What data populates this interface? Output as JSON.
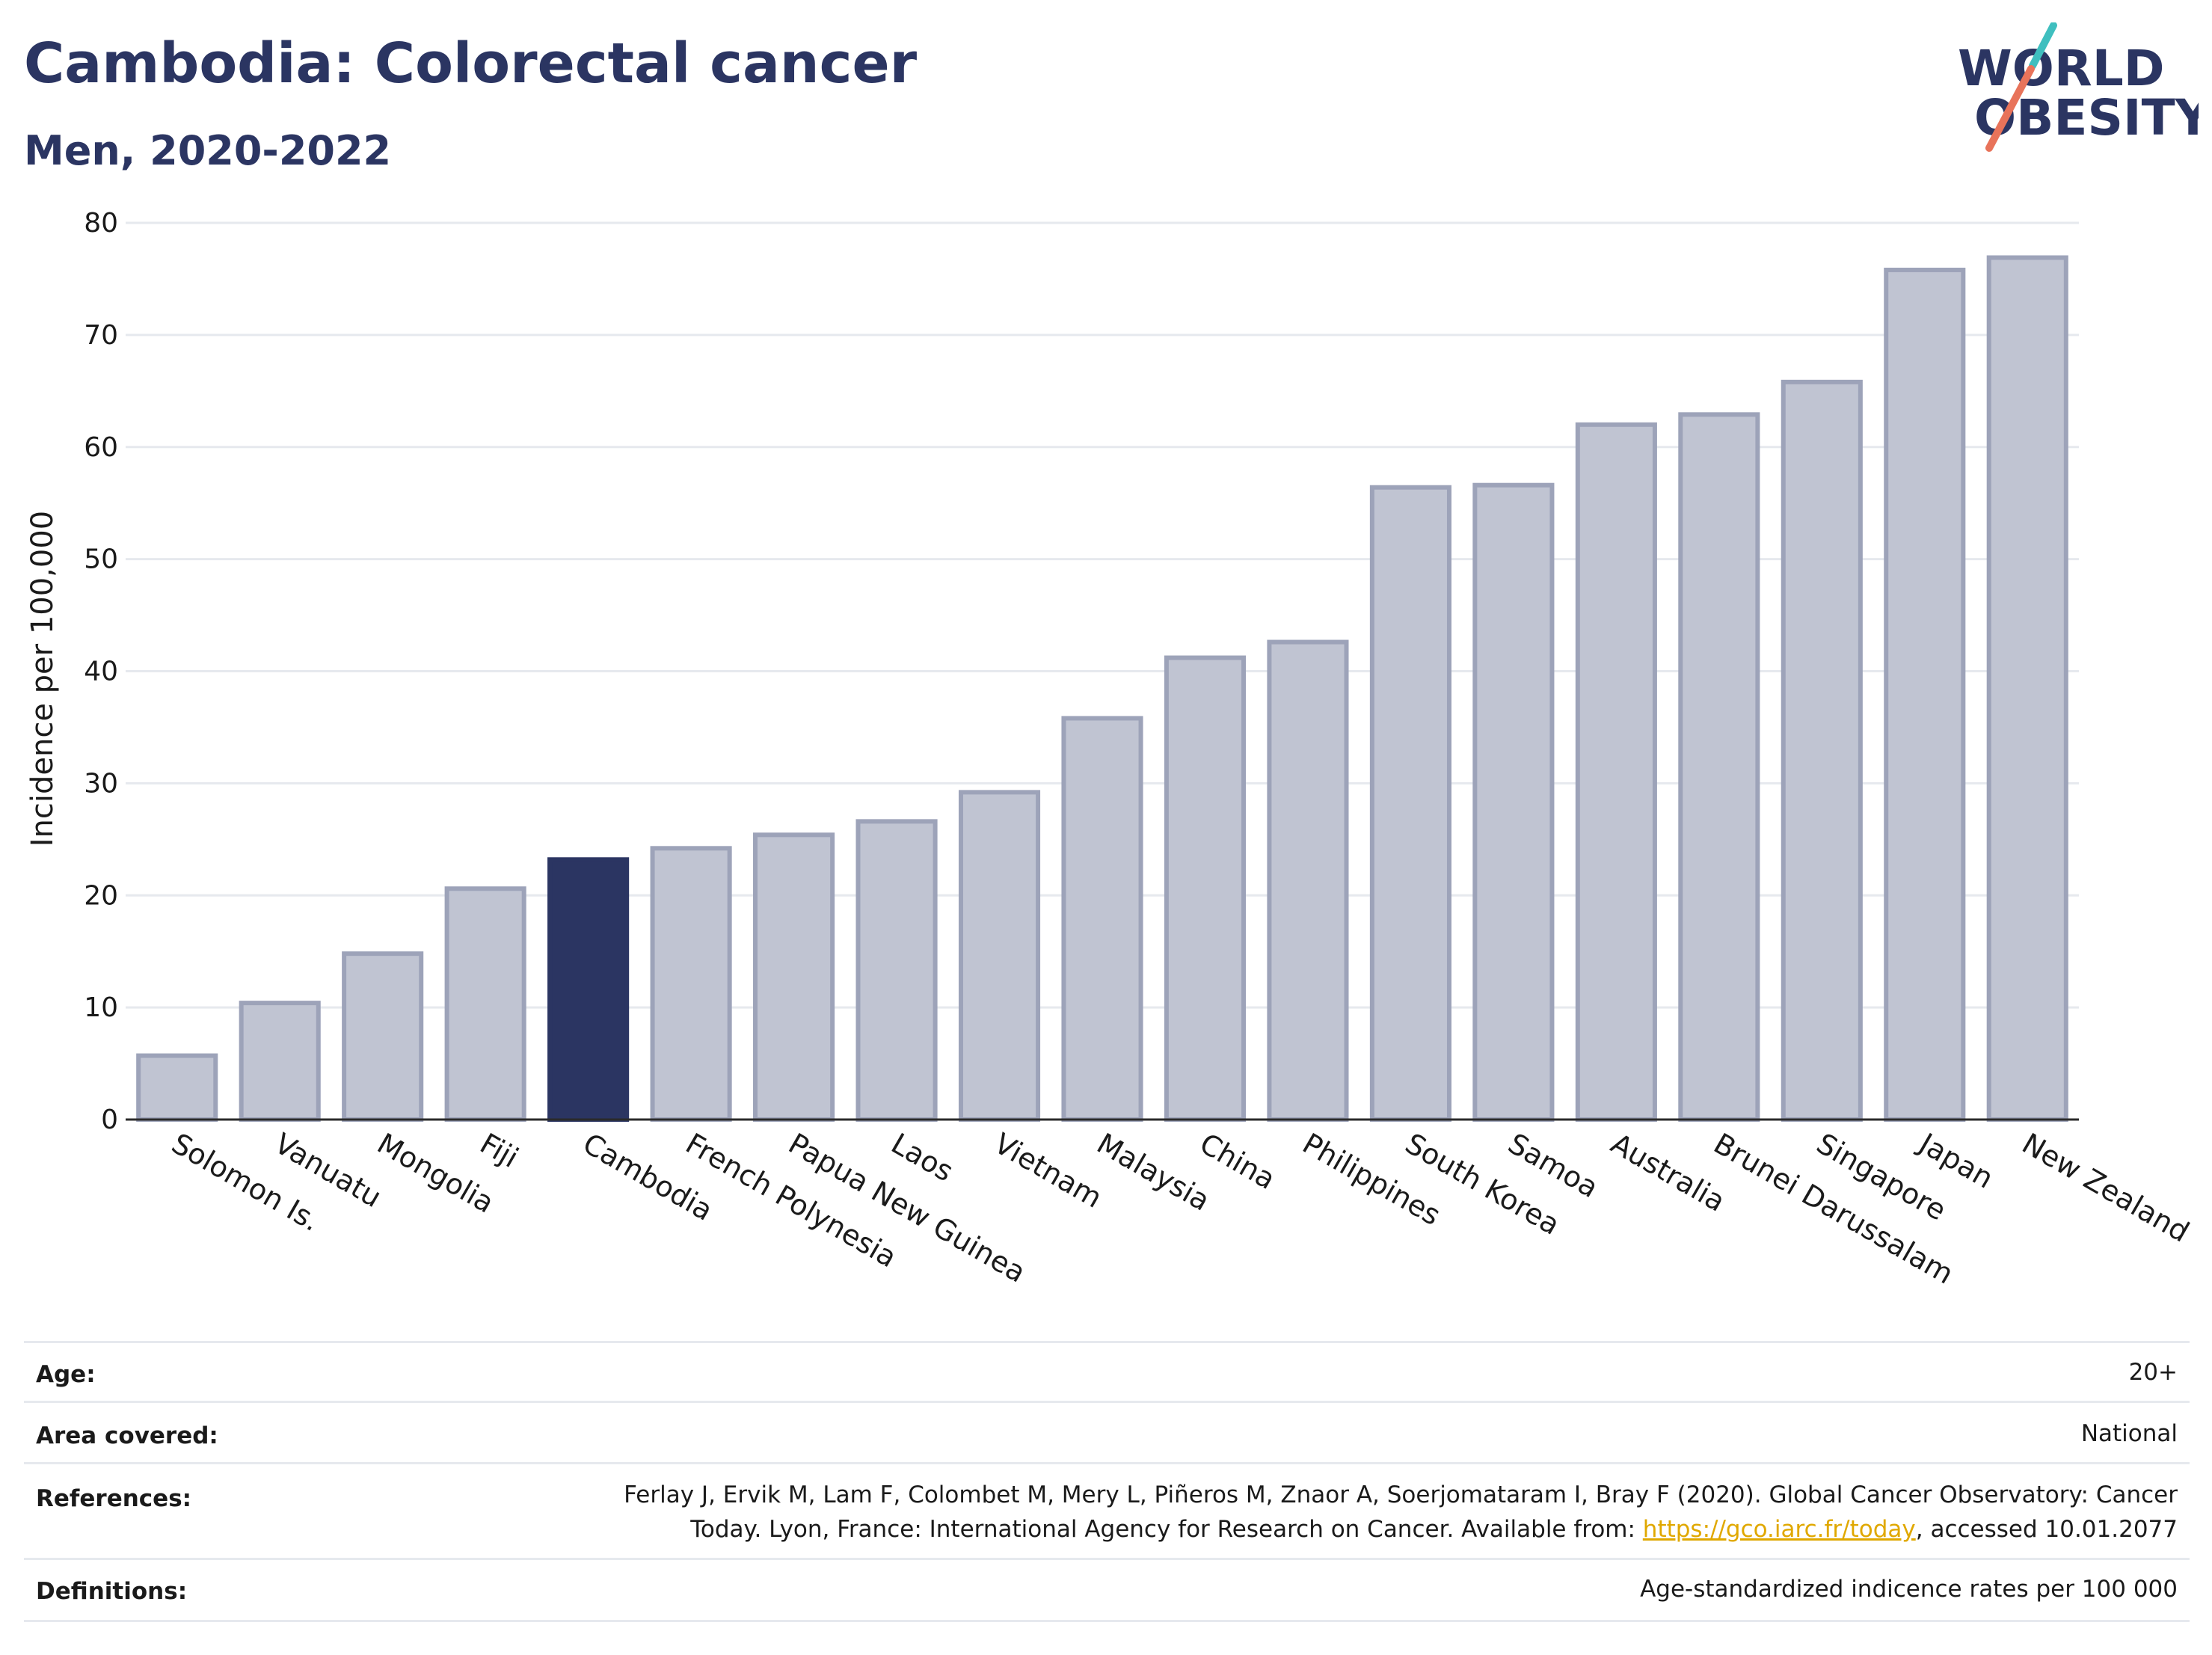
{
  "header": {
    "title": "Cambodia: Colorectal cancer",
    "subtitle": "Men, 2020-2022"
  },
  "logo": {
    "line1": "WORLD",
    "line2": "OBESITY",
    "text_color": "#2b3562",
    "slash_colors": [
      "#3fbfbf",
      "#e8735a"
    ]
  },
  "chart_data": {
    "type": "bar",
    "categories": [
      "Solomon Is.",
      "Vanuatu",
      "Mongolia",
      "Fiji",
      "Cambodia",
      "French Polynesia",
      "Papua New Guinea",
      "Laos",
      "Vietnam",
      "Malaysia",
      "China",
      "Philippines",
      "South Korea",
      "Samoa",
      "Australia",
      "Brunei Darussalam",
      "Singapore",
      "Japan",
      "New Zealand"
    ],
    "values": [
      5.7,
      10.4,
      14.8,
      20.6,
      23.2,
      24.2,
      25.4,
      26.6,
      29.2,
      35.8,
      41.2,
      42.6,
      56.4,
      56.6,
      62.0,
      62.9,
      65.8,
      75.8,
      76.9
    ],
    "highlight": "Cambodia",
    "ylabel": "Incidence per 100,000",
    "xlabel": "",
    "ylim": [
      0,
      80
    ],
    "yticks": [
      0,
      10,
      20,
      30,
      40,
      50,
      60,
      70,
      80
    ],
    "grid": true,
    "colors": {
      "bar": "#c0c4d2",
      "bar_border": "#9da3b9",
      "highlight": "#2b3562",
      "grid": "#e6e9ee",
      "axis": "#2a2a2a"
    }
  },
  "meta": {
    "age_label": "Age:",
    "age_value": "20+",
    "area_label": "Area covered:",
    "area_value": "National",
    "references_label": "References:",
    "references_line1": "Ferlay J, Ervik M, Lam F, Colombet M, Mery L, Piñeros M, Znaor A, Soerjomataram I, Bray F (2020). Global Cancer Observatory: Cancer",
    "references_line2_pre": "Today. Lyon, France: International Agency for Research on Cancer. Available from: ",
    "references_link": "https://gco.iarc.fr/today",
    "references_line2_post": ", accessed 10.01.2077",
    "definitions_label": "Definitions:",
    "definitions_value": "Age-standardized indicence rates per 100 000"
  }
}
